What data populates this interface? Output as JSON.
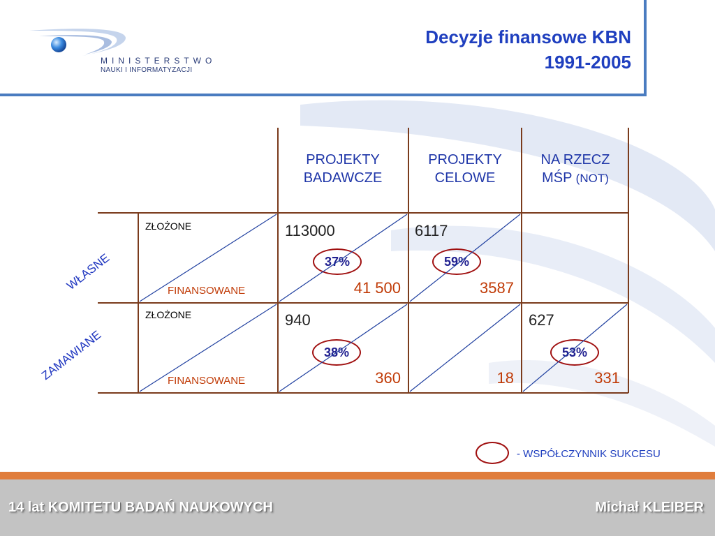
{
  "header": {
    "logo_line1": "MINISTERSTWO",
    "logo_line2": "NAUKI I INFORMATYZACJI",
    "title_line1": "Decyzje finansowe KBN",
    "title_line2": "1991-2005"
  },
  "table": {
    "columns": [
      {
        "line1": "PROJEKTY",
        "line2": "BADAWCZE",
        "suffix": ""
      },
      {
        "line1": "PROJEKTY",
        "line2": "CELOWE",
        "suffix": ""
      },
      {
        "line1": "NA RZECZ",
        "line2": "MŚP ",
        "suffix": "(NOT)"
      }
    ],
    "rows": [
      {
        "label": "WŁASNE",
        "submitted_label": "ZŁOŻONE",
        "funded_label": "FINANSOWANE",
        "cells": [
          {
            "submitted": "113000",
            "funded": "41 500",
            "rate": "37%"
          },
          {
            "submitted": "6117",
            "funded": "3587",
            "rate": "59%"
          },
          {
            "submitted": "",
            "funded": "",
            "rate": ""
          }
        ]
      },
      {
        "label": "ZAMAWIANE",
        "submitted_label": "ZŁOŻONE",
        "funded_label": "FINANSOWANE",
        "cells": [
          {
            "submitted": "940",
            "funded": "360",
            "rate": "38%"
          },
          {
            "submitted": "",
            "funded": "18",
            "rate": ""
          },
          {
            "submitted": "627",
            "funded": "331",
            "rate": "53%"
          }
        ]
      }
    ]
  },
  "legend": {
    "text": "- WSPÓŁCZYNNIK SUKCESU"
  },
  "footer": {
    "left": "14 lat KOMITETU BADAŃ NAUKOWYCH",
    "right": "Michał KLEIBER"
  },
  "colors": {
    "title": "#1f3fbf",
    "grid": "#7a3b1c",
    "funded": "#c03a06",
    "rate_oval": "#a01010",
    "footer_bar": "#e07d3c",
    "footer_bg": "#c3c3c3"
  }
}
